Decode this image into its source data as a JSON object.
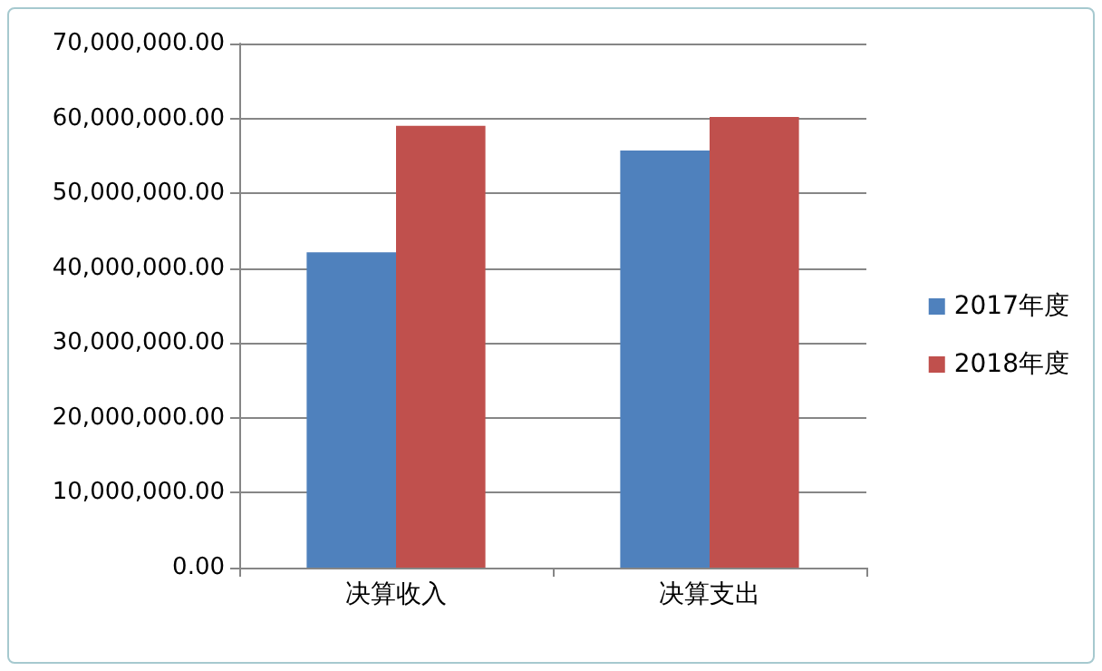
{
  "chart_data": {
    "type": "bar",
    "categories": [
      "决算收入",
      "决算支出"
    ],
    "series": [
      {
        "name": "2017年度",
        "color": "#4f81bd",
        "values": [
          42100000,
          55700000
        ]
      },
      {
        "name": "2018年度",
        "color": "#c0504d",
        "values": [
          59000000,
          60200000
        ]
      }
    ],
    "ylim": [
      0,
      70000000
    ],
    "yticks": [
      {
        "value": 0,
        "label": "0.00"
      },
      {
        "value": 10000000,
        "label": "10,000,000.00"
      },
      {
        "value": 20000000,
        "label": "20,000,000.00"
      },
      {
        "value": 30000000,
        "label": "30,000,000.00"
      },
      {
        "value": 40000000,
        "label": "40,000,000.00"
      },
      {
        "value": 50000000,
        "label": "50,000,000.00"
      },
      {
        "value": 60000000,
        "label": "60,000,000.00"
      },
      {
        "value": 70000000,
        "label": "70,000,000.00"
      }
    ],
    "grid": "y",
    "legend": "right"
  }
}
